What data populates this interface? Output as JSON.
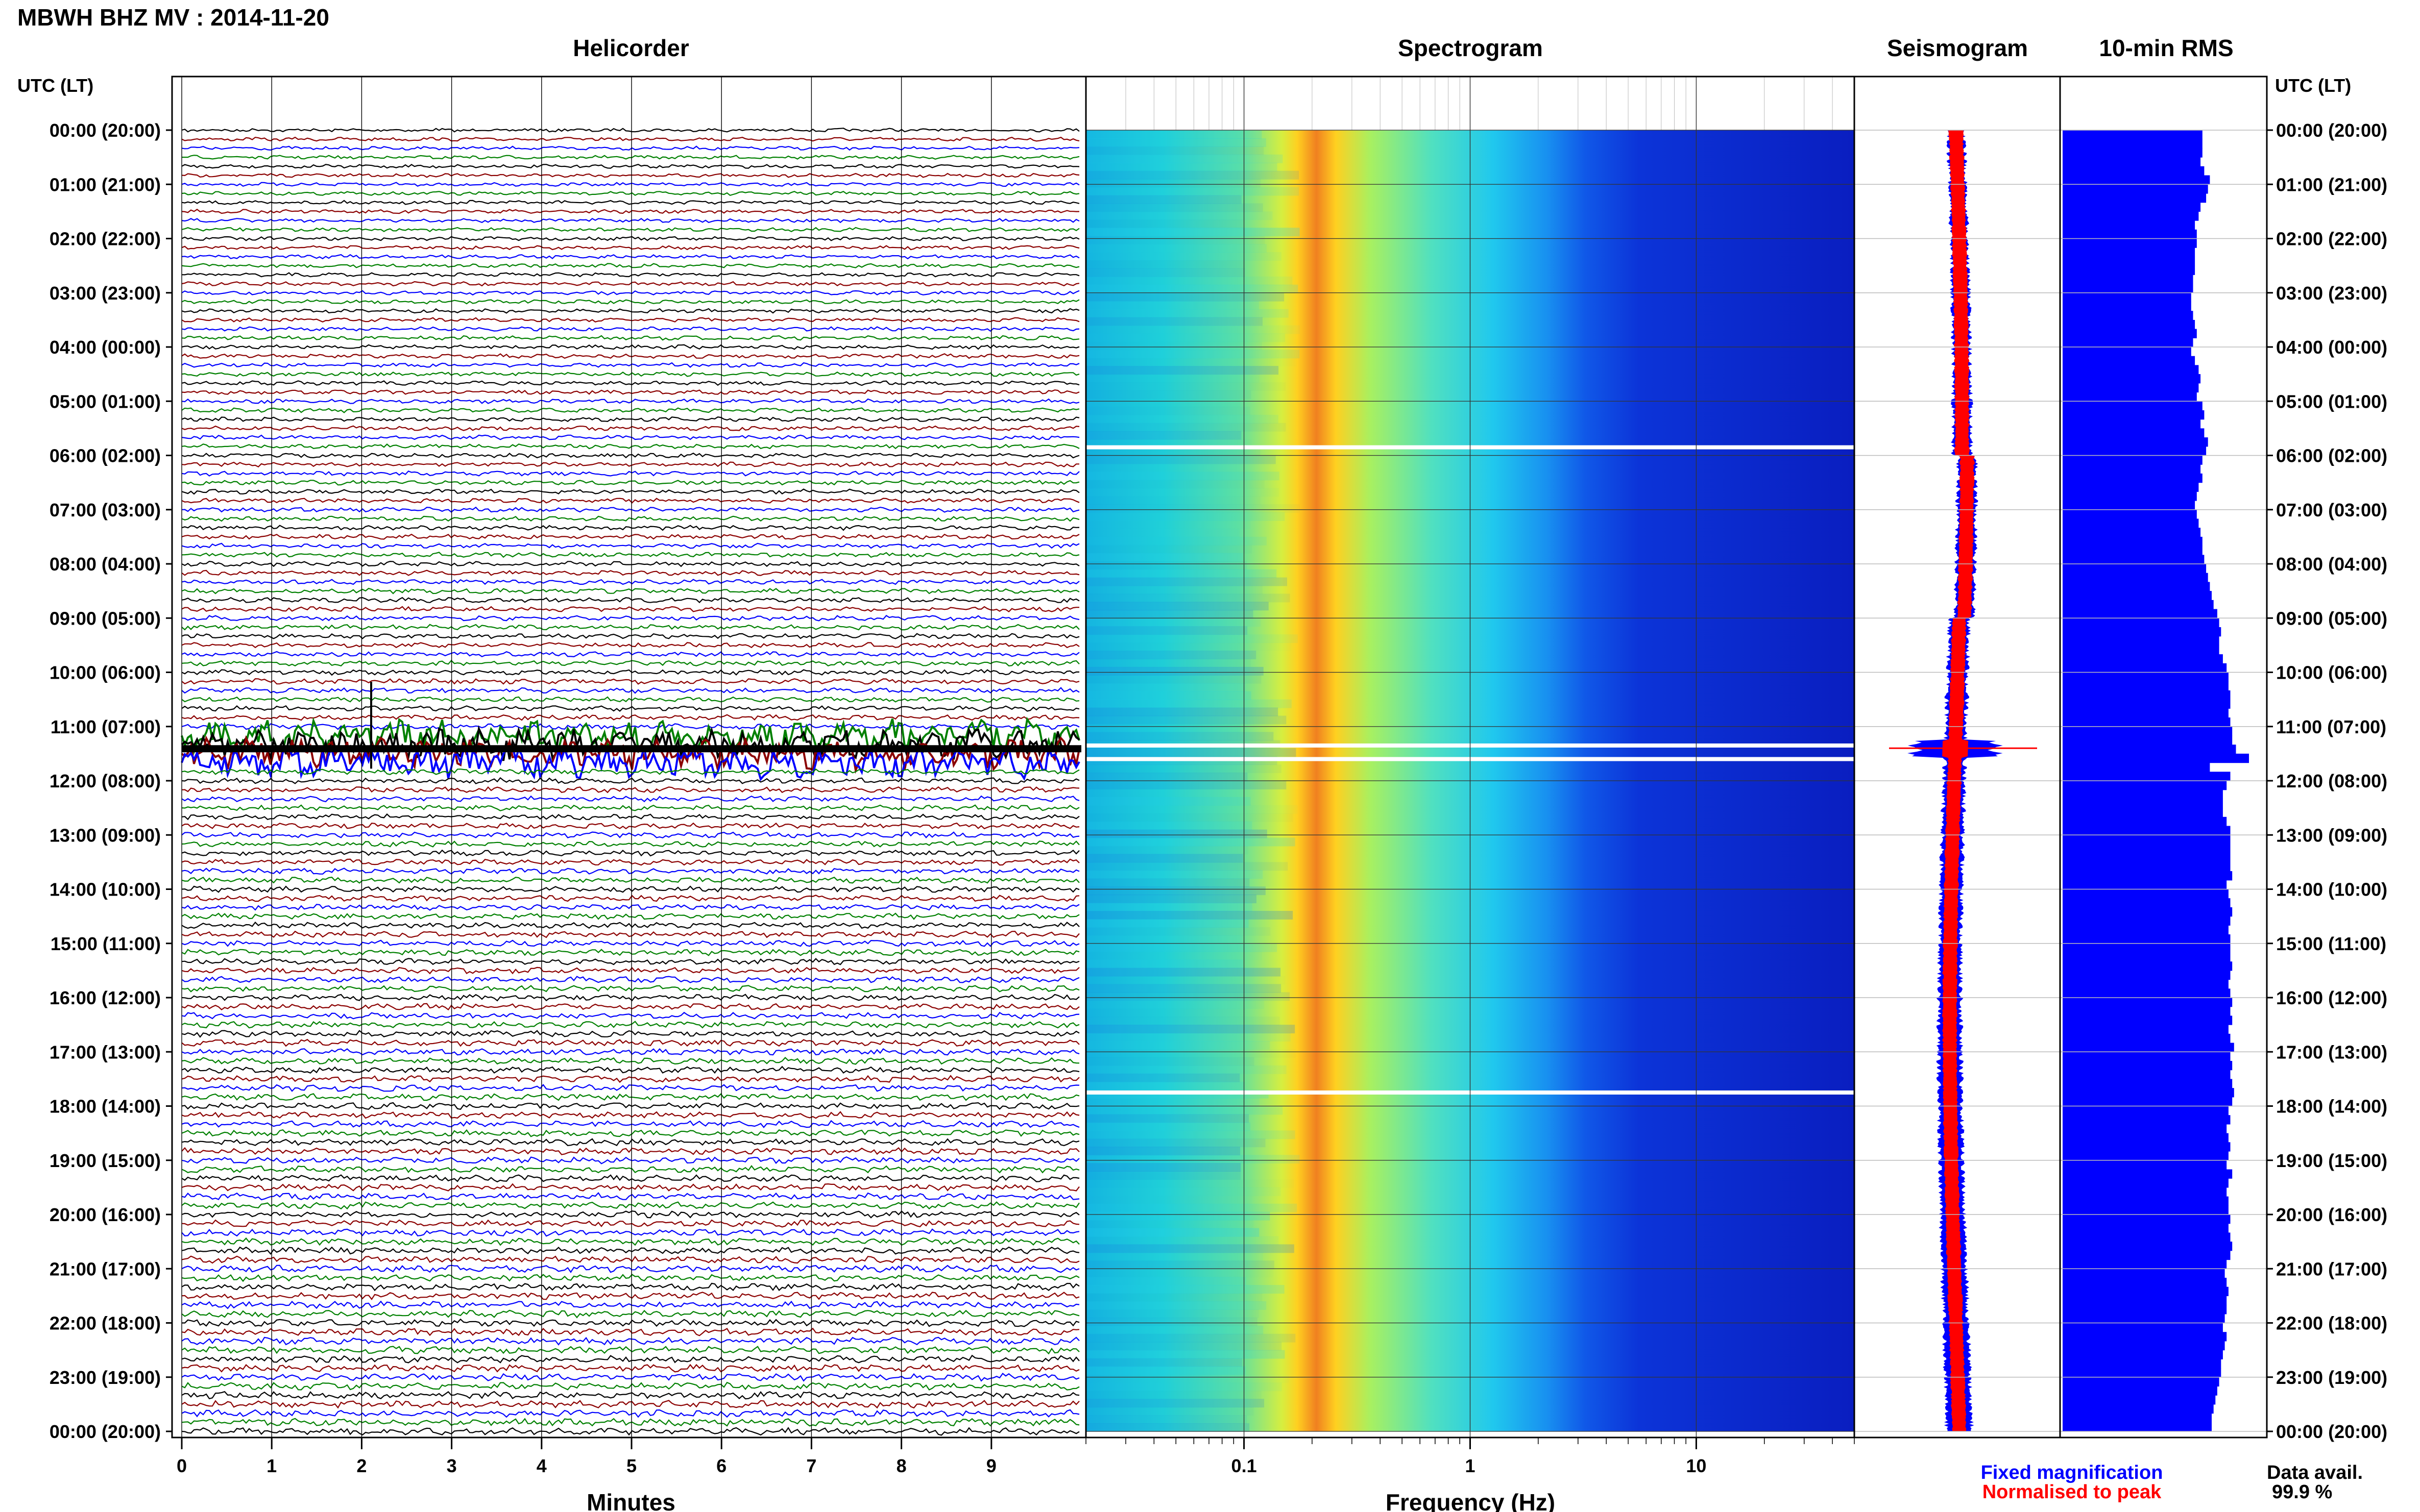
{
  "header": {
    "title": "MBWH BHZ MV : 2014-11-20"
  },
  "panels": {
    "helicorder": "Helicorder",
    "spectrogram": "Spectrogram",
    "seismogram": "Seismogram",
    "rms": "10-min RMS"
  },
  "axes": {
    "time_label_left": "UTC (LT)",
    "time_label_right": "UTC (LT)",
    "helicorder_xlabel": "Minutes",
    "spectrogram_xlabel": "Frequency (Hz)"
  },
  "colors": {
    "trace_cycle": [
      "#000000",
      "#8b0000",
      "#0000ff",
      "#008000"
    ],
    "fixed": "#0000ff",
    "normalised": "#ff0000",
    "rms_bar": "#0000ff"
  },
  "legend": {
    "fixed_magnification": "Fixed magnification",
    "normalised_to_peak": "Normalised to peak",
    "data_avail_label": "Data avail.",
    "data_avail_value": "99.9 %"
  },
  "chart_data": [
    {
      "type": "line",
      "name": "helicorder",
      "xlabel": "Minutes",
      "x_ticks": [
        "0",
        "1",
        "2",
        "3",
        "4",
        "5",
        "6",
        "7",
        "8",
        "9"
      ],
      "xlim": [
        0,
        10
      ],
      "y_ticks": [
        "00:00 (20:00)",
        "01:00 (21:00)",
        "02:00 (22:00)",
        "03:00 (23:00)",
        "04:00 (00:00)",
        "05:00 (01:00)",
        "06:00 (02:00)",
        "07:00 (03:00)",
        "08:00 (04:00)",
        "09:00 (05:00)",
        "10:00 (06:00)",
        "11:00 (07:00)",
        "12:00 (08:00)",
        "13:00 (09:00)",
        "14:00 (10:00)",
        "15:00 (11:00)",
        "16:00 (12:00)",
        "17:00 (13:00)",
        "18:00 (14:00)",
        "19:00 (15:00)",
        "20:00 (16:00)",
        "21:00 (17:00)",
        "22:00 (18:00)",
        "23:00 (19:00)",
        "00:00 (20:00)"
      ],
      "trace_rows_per_hour": 6,
      "event_hour": 11.4
    },
    {
      "type": "heatmap",
      "name": "spectrogram",
      "xlabel": "Frequency (Hz)",
      "x_scale": "log",
      "x_ticks": [
        "0.1",
        "1",
        "10"
      ],
      "xlim": [
        0.02,
        50
      ],
      "peak_frequency_hz": 0.22,
      "data_gaps_hours": [
        5.85,
        11.35,
        11.6,
        17.75
      ]
    },
    {
      "type": "area",
      "name": "seismogram",
      "series": [
        "Fixed magnification",
        "Normalised to peak"
      ],
      "event_hour": 11.4
    },
    {
      "type": "bar",
      "name": "10-min RMS",
      "values": [
        0.75,
        0.75,
        0.75,
        0.74,
        0.76,
        0.79,
        0.78,
        0.77,
        0.74,
        0.73,
        0.71,
        0.72,
        0.72,
        0.71,
        0.71,
        0.71,
        0.7,
        0.7,
        0.69,
        0.69,
        0.7,
        0.71,
        0.72,
        0.7,
        0.69,
        0.71,
        0.73,
        0.74,
        0.73,
        0.72,
        0.75,
        0.76,
        0.74,
        0.76,
        0.78,
        0.77,
        0.75,
        0.74,
        0.75,
        0.73,
        0.72,
        0.71,
        0.72,
        0.73,
        0.74,
        0.75,
        0.75,
        0.76,
        0.77,
        0.78,
        0.79,
        0.8,
        0.81,
        0.83,
        0.84,
        0.85,
        0.84,
        0.84,
        0.86,
        0.88,
        0.89,
        0.89,
        0.9,
        0.9,
        0.89,
        0.9,
        0.91,
        0.91,
        0.93,
        1.0,
        0.79,
        0.9,
        0.88,
        0.86,
        0.86,
        0.86,
        0.88,
        0.9,
        0.9,
        0.9,
        0.9,
        0.9,
        0.91,
        0.88,
        0.89,
        0.9,
        0.91,
        0.9,
        0.89,
        0.9,
        0.9,
        0.9,
        0.91,
        0.9,
        0.89,
        0.9,
        0.91,
        0.9,
        0.91,
        0.89,
        0.9,
        0.92,
        0.9,
        0.91,
        0.9,
        0.91,
        0.92,
        0.91,
        0.89,
        0.9,
        0.88,
        0.89,
        0.9,
        0.89,
        0.88,
        0.91,
        0.89,
        0.88,
        0.89,
        0.89,
        0.9,
        0.89,
        0.9,
        0.91,
        0.9,
        0.88,
        0.87,
        0.88,
        0.89,
        0.88,
        0.88,
        0.87,
        0.86,
        0.88,
        0.87,
        0.86,
        0.85,
        0.85,
        0.84,
        0.83,
        0.82,
        0.81,
        0.8,
        0.8
      ]
    }
  ]
}
